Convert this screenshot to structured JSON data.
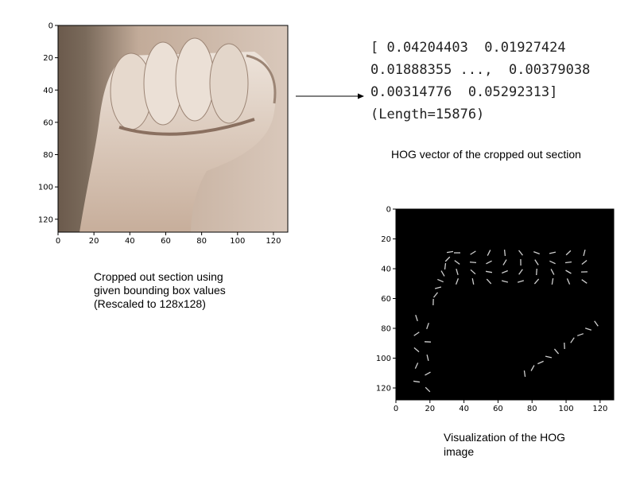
{
  "panels": [
    {
      "xlim": [
        0,
        128
      ],
      "ylim": [
        0,
        128
      ],
      "xticks": [
        0,
        20,
        40,
        60,
        80,
        100,
        120
      ],
      "yticks": [
        0,
        20,
        40,
        60,
        80,
        100,
        120
      ],
      "caption": [
        "Cropped out section using",
        "given bounding box values",
        "(Rescaled to 128x128)"
      ]
    },
    {
      "xlim": [
        0,
        128
      ],
      "ylim": [
        0,
        128
      ],
      "xticks": [
        0,
        20,
        40,
        60,
        80,
        100,
        120
      ],
      "yticks": [
        0,
        20,
        40,
        60,
        80,
        100,
        120
      ],
      "caption": [
        "Visualization of the HOG",
        "image"
      ]
    }
  ],
  "vector_text": {
    "lines": [
      "[ 0.04204403  0.01927424",
      "0.01888355 ...,  0.00379038",
      "0.00314776  0.05292313]",
      "(Length=15876)"
    ],
    "caption": "HOG vector of the cropped out section"
  }
}
